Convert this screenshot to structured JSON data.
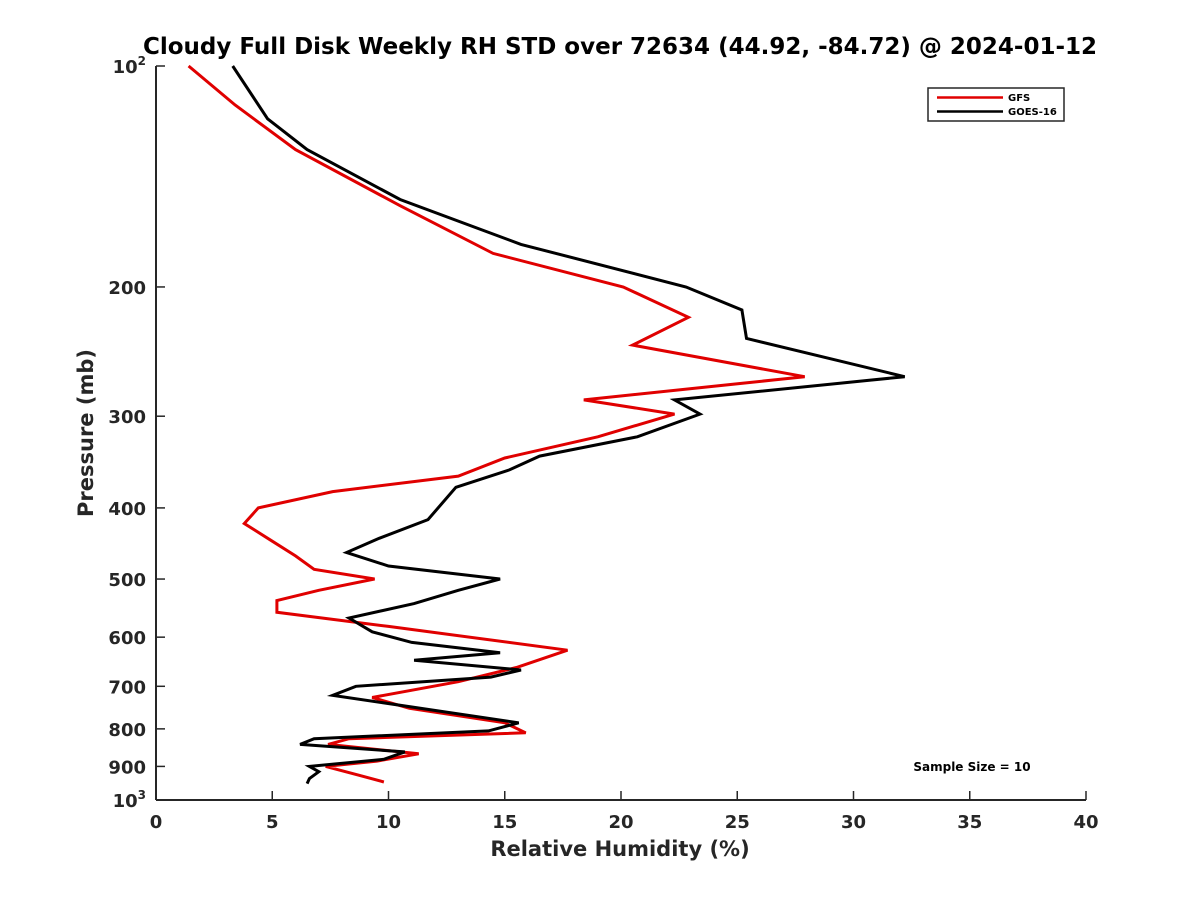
{
  "chart_data": {
    "type": "line",
    "title": "Cloudy Full Disk Weekly RH STD over 72634 (44.92, -84.72) @ 2024-01-12",
    "xlabel": "Relative Humidity (%)",
    "ylabel": "Pressure (mb)",
    "xlim": [
      0,
      40
    ],
    "ylim": [
      100,
      1000
    ],
    "y_scale": "log",
    "y_reversed": true,
    "grid": false,
    "x_ticks": [
      0,
      5,
      10,
      15,
      20,
      25,
      30,
      35,
      40
    ],
    "x_tick_labels": [
      "0",
      "5",
      "10",
      "15",
      "20",
      "25",
      "30",
      "35",
      "40"
    ],
    "y_ticks": [
      {
        "value": 100,
        "label": "10",
        "sup": "2"
      },
      {
        "value": 200,
        "label": "200",
        "sup": ""
      },
      {
        "value": 300,
        "label": "300",
        "sup": ""
      },
      {
        "value": 400,
        "label": "400",
        "sup": ""
      },
      {
        "value": 500,
        "label": "500",
        "sup": ""
      },
      {
        "value": 600,
        "label": "600",
        "sup": ""
      },
      {
        "value": 700,
        "label": "700",
        "sup": ""
      },
      {
        "value": 800,
        "label": "800",
        "sup": ""
      },
      {
        "value": 900,
        "label": "900",
        "sup": ""
      },
      {
        "value": 1000,
        "label": "10",
        "sup": "3"
      }
    ],
    "legend_position": "top-right",
    "annotation": "Sample Size = 10",
    "series": [
      {
        "name": "GFS",
        "color": "#e00000",
        "points": [
          [
            1.4,
            100
          ],
          [
            3.4,
            113
          ],
          [
            6.0,
            130
          ],
          [
            10.5,
            155
          ],
          [
            14.5,
            180
          ],
          [
            20.1,
            200
          ],
          [
            22.9,
            220
          ],
          [
            20.5,
            240
          ],
          [
            27.9,
            265
          ],
          [
            18.4,
            285
          ],
          [
            22.3,
            298
          ],
          [
            19.0,
            320
          ],
          [
            15.0,
            342
          ],
          [
            13.0,
            362
          ],
          [
            7.6,
            380
          ],
          [
            4.4,
            400
          ],
          [
            3.8,
            420
          ],
          [
            4.9,
            442
          ],
          [
            6.0,
            465
          ],
          [
            6.8,
            485
          ],
          [
            9.4,
            500
          ],
          [
            7.0,
            518
          ],
          [
            5.2,
            535
          ],
          [
            5.2,
            555
          ],
          [
            10.0,
            580
          ],
          [
            17.7,
            625
          ],
          [
            15.5,
            660
          ],
          [
            13.0,
            690
          ],
          [
            9.3,
            725
          ],
          [
            10.9,
            750
          ],
          [
            15.0,
            785
          ],
          [
            15.9,
            810
          ],
          [
            8.3,
            825
          ],
          [
            7.4,
            840
          ],
          [
            11.3,
            865
          ],
          [
            9.5,
            885
          ],
          [
            7.3,
            900
          ],
          [
            8.7,
            925
          ],
          [
            9.8,
            945
          ]
        ]
      },
      {
        "name": "GOES-16",
        "color": "#000000",
        "points": [
          [
            3.3,
            100
          ],
          [
            4.8,
            118
          ],
          [
            6.5,
            130
          ],
          [
            10.5,
            152
          ],
          [
            15.7,
            175
          ],
          [
            22.8,
            200
          ],
          [
            25.2,
            215
          ],
          [
            25.4,
            235
          ],
          [
            32.2,
            265
          ],
          [
            22.3,
            285
          ],
          [
            23.4,
            298
          ],
          [
            20.7,
            320
          ],
          [
            16.5,
            340
          ],
          [
            15.2,
            355
          ],
          [
            12.9,
            375
          ],
          [
            11.7,
            415
          ],
          [
            9.6,
            440
          ],
          [
            8.2,
            460
          ],
          [
            10.0,
            480
          ],
          [
            14.8,
            500
          ],
          [
            13.0,
            518
          ],
          [
            11.1,
            540
          ],
          [
            8.3,
            565
          ],
          [
            9.3,
            590
          ],
          [
            11.0,
            610
          ],
          [
            14.8,
            630
          ],
          [
            11.1,
            645
          ],
          [
            15.7,
            665
          ],
          [
            14.4,
            680
          ],
          [
            8.6,
            700
          ],
          [
            7.6,
            720
          ],
          [
            12.6,
            760
          ],
          [
            15.6,
            785
          ],
          [
            14.3,
            805
          ],
          [
            6.8,
            825
          ],
          [
            6.2,
            840
          ],
          [
            10.7,
            860
          ],
          [
            9.8,
            880
          ],
          [
            6.6,
            900
          ],
          [
            7.0,
            915
          ],
          [
            6.6,
            935
          ],
          [
            6.5,
            950
          ]
        ]
      }
    ]
  }
}
